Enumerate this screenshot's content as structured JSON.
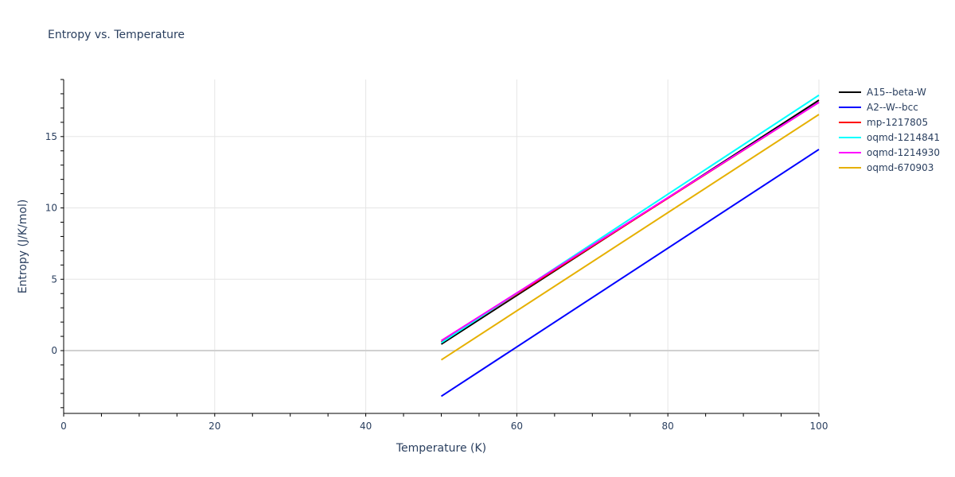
{
  "chart_data": {
    "type": "line",
    "title": "Entropy vs. Temperature",
    "xlabel": "Temperature (K)",
    "ylabel": "Entropy (J/K/mol)",
    "xlim": [
      0,
      100
    ],
    "ylim": [
      -4.4,
      19
    ],
    "x_ticks": [
      "0",
      "20",
      "40",
      "60",
      "80",
      "100"
    ],
    "y_ticks": [
      "0",
      "5",
      "10",
      "15"
    ],
    "grid": true,
    "legend_position": "right",
    "x": [
      50,
      100
    ],
    "series": [
      {
        "name": "A15--beta-W",
        "color": "#000000",
        "values": [
          0.45,
          17.55
        ]
      },
      {
        "name": "A2--W--bcc",
        "color": "#0000ff",
        "values": [
          -3.2,
          14.1
        ]
      },
      {
        "name": "mp-1217805",
        "color": "#ff0000",
        "values": [
          0.6,
          17.4
        ]
      },
      {
        "name": "oqmd-1214841",
        "color": "#00ffff",
        "values": [
          0.55,
          17.9
        ]
      },
      {
        "name": "oqmd-1214930",
        "color": "#ff00ff",
        "values": [
          0.7,
          17.4
        ]
      },
      {
        "name": "oqmd-670903",
        "color": "#e6b000",
        "values": [
          -0.65,
          16.55
        ]
      }
    ]
  }
}
